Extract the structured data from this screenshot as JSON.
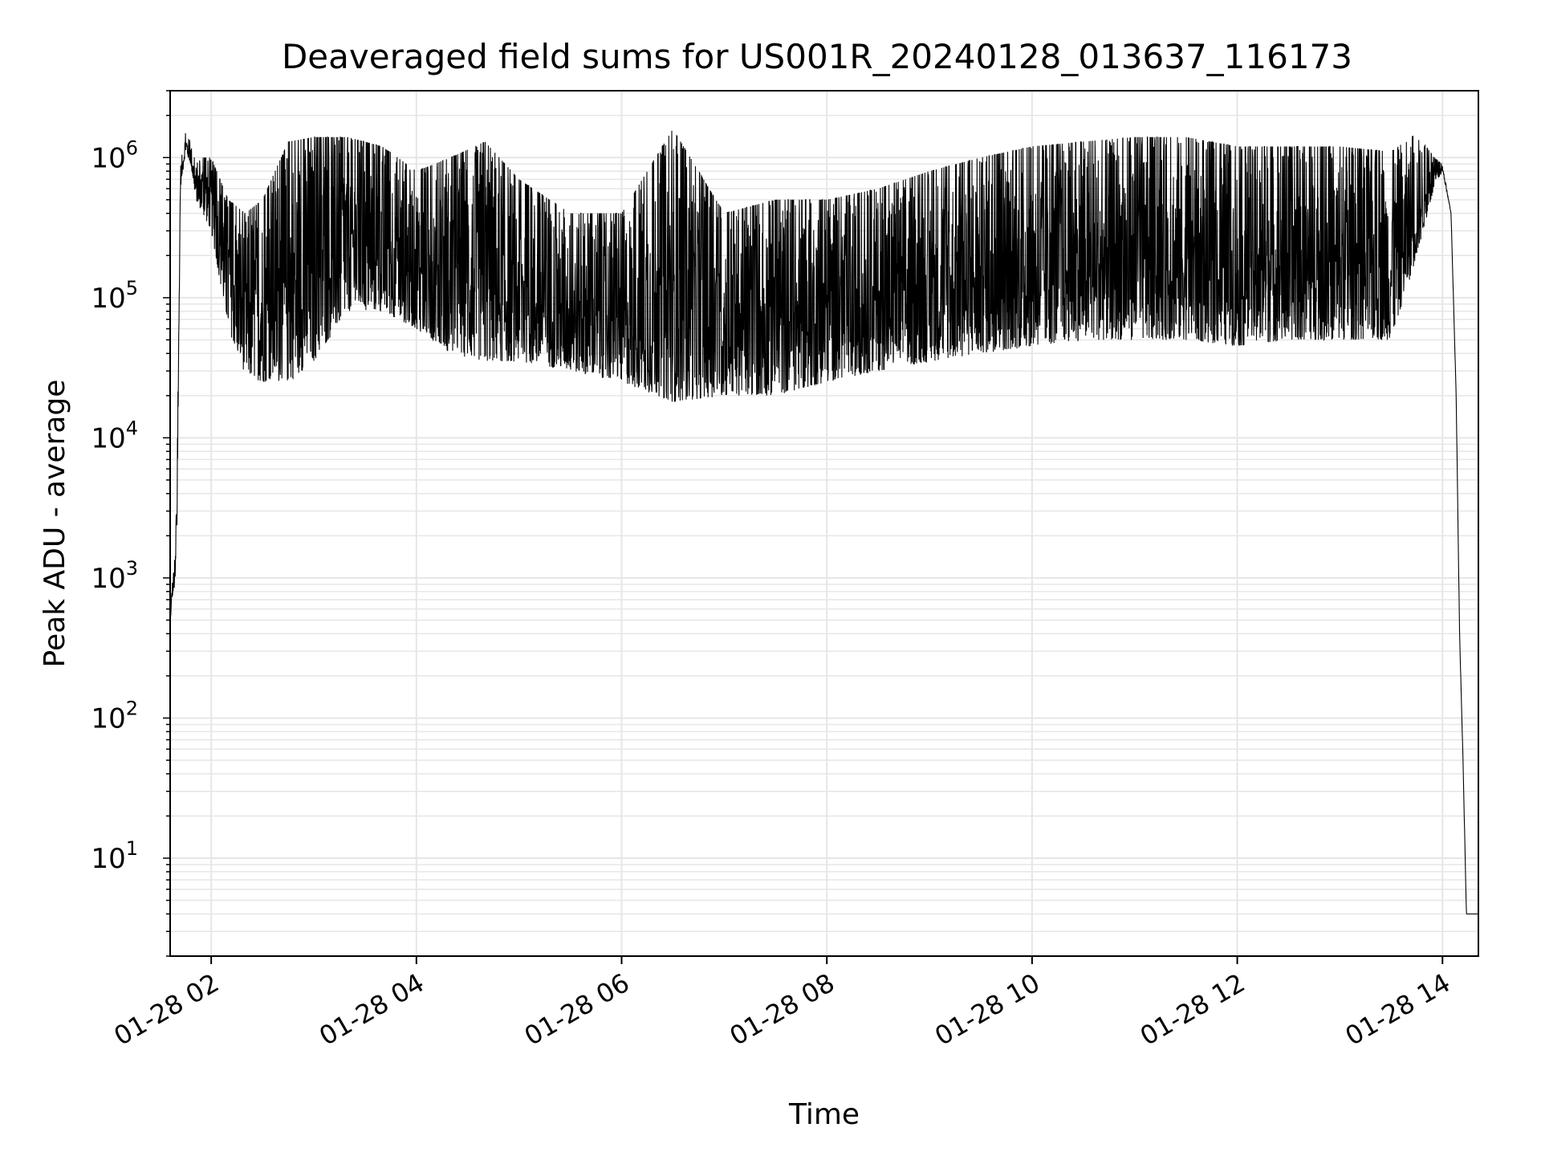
{
  "chart_data": {
    "type": "line",
    "title": "Deaveraged field sums for US001R_20240128_013637_116173",
    "xlabel": "Time",
    "ylabel": "Peak ADU - average",
    "yscale": "log",
    "xlim": [
      "01-28 01:36",
      "01-28 14:21"
    ],
    "ylim": [
      2,
      3000000
    ],
    "grid": true,
    "line_color": "#000000",
    "x_ticks": [
      "01-28 02",
      "01-28 04",
      "01-28 06",
      "01-28 08",
      "01-28 10",
      "01-28 12",
      "01-28 14"
    ],
    "y_ticks": [
      {
        "base": "10",
        "exp": "1"
      },
      {
        "base": "10",
        "exp": "2"
      },
      {
        "base": "10",
        "exp": "3"
      },
      {
        "base": "10",
        "exp": "4"
      },
      {
        "base": "10",
        "exp": "5"
      },
      {
        "base": "10",
        "exp": "6"
      }
    ],
    "series": [
      {
        "x": [
          "01-28 01:36",
          "01-28 01:37",
          "01-28 01:39",
          "01-28 01:40",
          "01-28 01:42",
          "01-28 01:45",
          "01-28 01:48",
          "01-28 01:51",
          "01-28 01:55",
          "01-28 02:00",
          "01-28 02:10",
          "01-28 02:20",
          "01-28 02:30",
          "01-28 02:45",
          "01-28 03:00",
          "01-28 03:20",
          "01-28 03:40",
          "01-28 04:00",
          "01-28 04:20",
          "01-28 04:40",
          "01-28 05:00",
          "01-28 05:30",
          "01-28 06:00",
          "01-28 06:30",
          "01-28 07:00",
          "01-28 07:30",
          "01-28 08:00",
          "01-28 08:30",
          "01-28 09:00",
          "01-28 09:30",
          "01-28 10:00",
          "01-28 10:30",
          "01-28 11:00",
          "01-28 11:30",
          "01-28 12:00",
          "01-28 12:30",
          "01-28 13:00",
          "01-28 13:30",
          "01-28 13:45",
          "01-28 13:55",
          "01-28 14:00",
          "01-28 14:05",
          "01-28 14:08",
          "01-28 14:10",
          "01-28 14:12",
          "01-28 14:14",
          "01-28 14:21"
        ],
        "lower": [
          450,
          700,
          900,
          2000,
          600000,
          1100000,
          900000,
          500000,
          400000,
          300000,
          60000,
          28000,
          25000,
          25000,
          35000,
          80000,
          80000,
          60000,
          40000,
          35000,
          35000,
          30000,
          25000,
          18000,
          20000,
          20000,
          25000,
          30000,
          35000,
          40000,
          45000,
          50000,
          50000,
          50000,
          45000,
          50000,
          50000,
          50000,
          200000,
          600000,
          800000,
          400000,
          20000,
          400,
          50,
          4,
          4
        ],
        "upper": [
          450,
          900,
          1500,
          5000,
          900000,
          1500000,
          1300000,
          900000,
          1000000,
          1000000,
          500000,
          400000,
          500000,
          1300000,
          1400000,
          1400000,
          1200000,
          800000,
          1000000,
          1300000,
          700000,
          400000,
          400000,
          1600000,
          400000,
          500000,
          500000,
          600000,
          800000,
          1000000,
          1200000,
          1300000,
          1400000,
          1400000,
          1200000,
          1200000,
          1200000,
          1100000,
          1500000,
          1000000,
          900000,
          400000,
          20000,
          400,
          50,
          4,
          4
        ]
      }
    ]
  }
}
